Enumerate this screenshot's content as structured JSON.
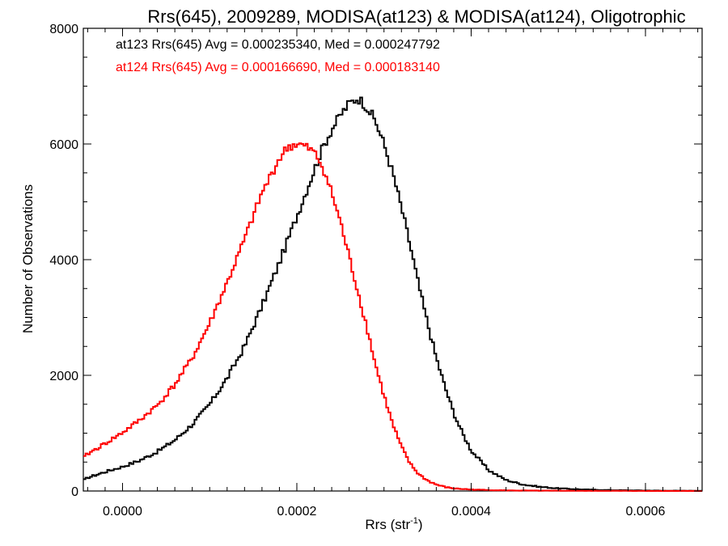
{
  "chart_data": {
    "type": "histogram",
    "title": "Rrs(645), 2009289, MODISA(at123) & MODISA(at124), Oligotrophic",
    "xlabel_main": "Rrs (str",
    "xlabel_sup": "-1",
    "xlabel_close": ")",
    "ylabel": "Number of Observations",
    "xlim": [
      -4.5e-05,
      0.000665
    ],
    "ylim": [
      0,
      8000
    ],
    "xticks": [
      {
        "value": 0.0,
        "label": "0.0000"
      },
      {
        "value": 0.0002,
        "label": "0.0002"
      },
      {
        "value": 0.0004,
        "label": "0.0004"
      },
      {
        "value": 0.0006,
        "label": "0.0006"
      }
    ],
    "yticks": [
      {
        "value": 0,
        "label": "0"
      },
      {
        "value": 2000,
        "label": "2000"
      },
      {
        "value": 4000,
        "label": "4000"
      },
      {
        "value": 6000,
        "label": "6000"
      },
      {
        "value": 8000,
        "label": "8000"
      }
    ],
    "grid": false,
    "legend_position": "top-left",
    "series": [
      {
        "name": "at123",
        "color": "#000000",
        "annotation": "at123 Rrs(645) Avg = 0.000235340, Med = 0.000247792",
        "points": [
          [
            -4.5e-05,
            180
          ],
          [
            -4e-05,
            230
          ],
          [
            -2e-05,
            330
          ],
          [
            0.0,
            420
          ],
          [
            2e-05,
            530
          ],
          [
            4e-05,
            680
          ],
          [
            6e-05,
            880
          ],
          [
            8e-05,
            1150
          ],
          [
            0.0001,
            1500
          ],
          [
            0.00012,
            1950
          ],
          [
            0.00014,
            2500
          ],
          [
            0.00016,
            3200
          ],
          [
            0.00018,
            3950
          ],
          [
            0.0002,
            4750
          ],
          [
            0.00021,
            5150
          ],
          [
            0.00022,
            5550
          ],
          [
            0.00023,
            5950
          ],
          [
            0.00024,
            6250
          ],
          [
            0.00025,
            6500
          ],
          [
            0.00026,
            6700
          ],
          [
            0.00027,
            6800
          ],
          [
            0.00028,
            6650
          ],
          [
            0.00029,
            6400
          ],
          [
            0.0003,
            6000
          ],
          [
            0.00031,
            5500
          ],
          [
            0.00032,
            4900
          ],
          [
            0.00033,
            4250
          ],
          [
            0.00034,
            3550
          ],
          [
            0.00035,
            2900
          ],
          [
            0.00036,
            2300
          ],
          [
            0.00037,
            1800
          ],
          [
            0.00038,
            1350
          ],
          [
            0.00039,
            1000
          ],
          [
            0.0004,
            700
          ],
          [
            0.00042,
            360
          ],
          [
            0.00044,
            190
          ],
          [
            0.00046,
            110
          ],
          [
            0.00048,
            70
          ],
          [
            0.0005,
            45
          ],
          [
            0.00053,
            25
          ],
          [
            0.00056,
            15
          ],
          [
            0.0006,
            8
          ],
          [
            0.00063,
            5
          ],
          [
            0.000665,
            3
          ]
        ]
      },
      {
        "name": "at124",
        "color": "#ff0000",
        "annotation": "at124 Rrs(645) Avg = 0.000166690, Med = 0.000183140",
        "points": [
          [
            -4.5e-05,
            570
          ],
          [
            -4e-05,
            640
          ],
          [
            -2e-05,
            820
          ],
          [
            0.0,
            1010
          ],
          [
            2e-05,
            1230
          ],
          [
            4e-05,
            1480
          ],
          [
            6e-05,
            1840
          ],
          [
            8e-05,
            2300
          ],
          [
            0.0001,
            2900
          ],
          [
            0.00012,
            3600
          ],
          [
            0.00014,
            4350
          ],
          [
            0.00015,
            4750
          ],
          [
            0.00016,
            5150
          ],
          [
            0.00017,
            5450
          ],
          [
            0.00018,
            5750
          ],
          [
            0.00019,
            5950
          ],
          [
            0.0002,
            6000
          ],
          [
            0.00021,
            5950
          ],
          [
            0.00022,
            5850
          ],
          [
            0.00023,
            5600
          ],
          [
            0.00024,
            5150
          ],
          [
            0.00025,
            4650
          ],
          [
            0.00026,
            4050
          ],
          [
            0.00027,
            3450
          ],
          [
            0.00028,
            2850
          ],
          [
            0.00029,
            2200
          ],
          [
            0.0003,
            1650
          ],
          [
            0.00031,
            1150
          ],
          [
            0.00032,
            760
          ],
          [
            0.00033,
            470
          ],
          [
            0.00034,
            290
          ],
          [
            0.00035,
            180
          ],
          [
            0.00036,
            110
          ],
          [
            0.00037,
            70
          ],
          [
            0.00038,
            45
          ],
          [
            0.0004,
            25
          ],
          [
            0.00043,
            12
          ],
          [
            0.00046,
            7
          ],
          [
            0.0005,
            4
          ],
          [
            0.00055,
            2
          ],
          [
            0.0006,
            1
          ],
          [
            0.000665,
            1
          ]
        ]
      }
    ]
  }
}
